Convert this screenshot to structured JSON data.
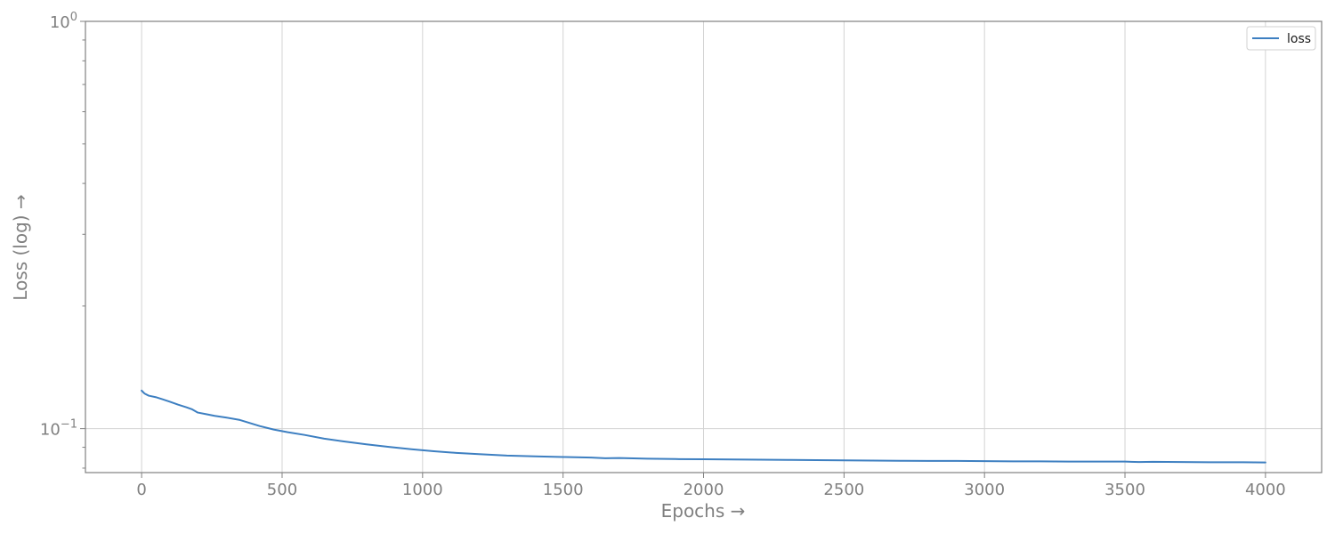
{
  "chart_data": {
    "type": "line",
    "xlabel": "Epochs →",
    "ylabel": "Loss (log) →",
    "xlim": [
      -200,
      4200
    ],
    "ylim": [
      0.078,
      1.0
    ],
    "yscale": "log",
    "grid": true,
    "legend_position": "top-right",
    "x_ticks": [
      0,
      500,
      1000,
      1500,
      2000,
      2500,
      3000,
      3500,
      4000
    ],
    "x_tick_labels": [
      "0",
      "500",
      "1000",
      "1500",
      "2000",
      "2500",
      "3000",
      "3500",
      "4000"
    ],
    "y_major_ticks": [
      {
        "value": 1.0,
        "base": "10",
        "exp": "0"
      },
      {
        "value": 0.1,
        "base": "10",
        "exp": "−1"
      }
    ],
    "y_minor_ticks": [
      0.08,
      0.09,
      0.2,
      0.3,
      0.4,
      0.5,
      0.6,
      0.7,
      0.8,
      0.9
    ],
    "series": [
      {
        "name": "loss",
        "color": "#3d7fc1",
        "x": [
          0,
          10,
          25,
          50,
          75,
          100,
          130,
          160,
          180,
          200,
          230,
          260,
          300,
          350,
          380,
          420,
          470,
          520,
          580,
          650,
          720,
          800,
          880,
          960,
          1040,
          1120,
          1200,
          1300,
          1400,
          1500,
          1600,
          1650,
          1700,
          1800,
          1900,
          2000,
          2100,
          2200,
          2300,
          2400,
          2500,
          2600,
          2700,
          2800,
          2900,
          3000,
          3100,
          3200,
          3300,
          3400,
          3500,
          3550,
          3600,
          3700,
          3800,
          3900,
          4000
        ],
        "y": [
          0.124,
          0.122,
          0.1205,
          0.1195,
          0.118,
          0.1165,
          0.1145,
          0.1128,
          0.1115,
          0.1095,
          0.1085,
          0.1075,
          0.1065,
          0.105,
          0.1035,
          0.1015,
          0.0995,
          0.098,
          0.0965,
          0.0945,
          0.093,
          0.0915,
          0.0902,
          0.089,
          0.088,
          0.0872,
          0.0866,
          0.0859,
          0.0855,
          0.0852,
          0.0849,
          0.0846,
          0.0847,
          0.0844,
          0.0842,
          0.0841,
          0.084,
          0.0839,
          0.0838,
          0.0837,
          0.0836,
          0.0835,
          0.0834,
          0.0833,
          0.0833,
          0.0832,
          0.0831,
          0.0831,
          0.083,
          0.083,
          0.083,
          0.0828,
          0.0829,
          0.0828,
          0.0827,
          0.0827,
          0.0826
        ]
      }
    ]
  }
}
